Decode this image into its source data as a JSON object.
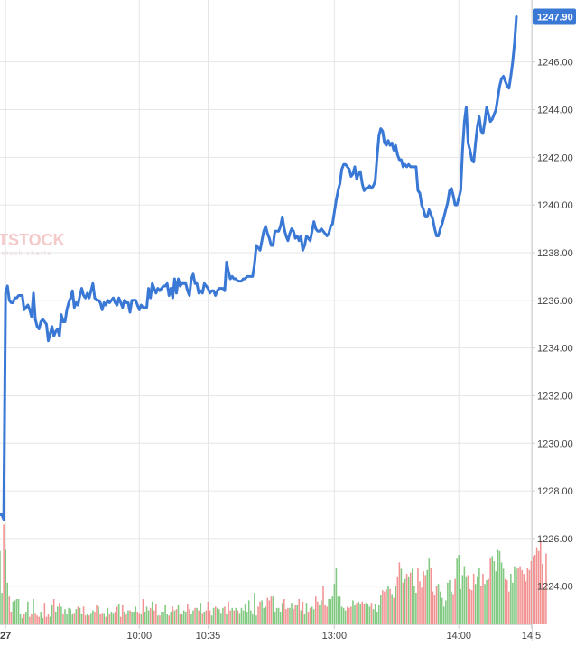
{
  "watermark": {
    "text": "TSTOCK",
    "tagline": "stock charts"
  },
  "colors": {
    "price_line": "#3a78d6",
    "volume_up": "#6cc06c",
    "volume_down": "#f07f7f",
    "price_tag": "#3a78d6",
    "grid": "#e6e6e6",
    "axis_text": "#444444"
  },
  "chart_data": {
    "type": "line",
    "ylim": [
      1222.4,
      1248.6
    ],
    "y_ticks": [
      "1224.00",
      "1226.00",
      "1228.00",
      "1230.00",
      "1232.00",
      "1234.00",
      "1236.00",
      "1238.00",
      "1240.00",
      "1242.00",
      "1244.00",
      "1246.00"
    ],
    "y_tick_values": [
      1224,
      1226,
      1228,
      1230,
      1232,
      1234,
      1236,
      1238,
      1240,
      1242,
      1244,
      1246
    ],
    "x_ticks": [
      "27",
      "10:00",
      "10:35",
      "13:00",
      "14:00",
      "14:5"
    ],
    "x_tick_index": [
      3,
      75,
      112,
      180,
      247,
      286
    ],
    "last_price_label": "1247.90",
    "series": [
      {
        "type": "line",
        "values": [
          1227.0,
          1227.0,
          1226.8,
          1236.3,
          1236.6,
          1236.0,
          1235.9,
          1235.9,
          1236.1,
          1236.1,
          1236.2,
          1236.2,
          1236.2,
          1235.6,
          1235.7,
          1235.8,
          1235.6,
          1235.3,
          1236.3,
          1235.2,
          1234.9,
          1234.8,
          1235.1,
          1235.2,
          1235.1,
          1235.0,
          1234.3,
          1234.6,
          1234.9,
          1234.5,
          1234.7,
          1234.8,
          1234.5,
          1235.4,
          1235.1,
          1235.1,
          1235.6,
          1235.9,
          1236.1,
          1236.4,
          1235.7,
          1235.9,
          1235.8,
          1236.2,
          1236.5,
          1236.2,
          1236.1,
          1236.3,
          1236.1,
          1236.4,
          1236.7,
          1236.1,
          1236.0,
          1236.0,
          1235.9,
          1235.6,
          1235.9,
          1235.8,
          1236.0,
          1235.9,
          1236.0,
          1236.1,
          1235.9,
          1235.8,
          1236.1,
          1235.9,
          1235.7,
          1236.0,
          1235.9,
          1235.9,
          1235.5,
          1236.0,
          1236.0,
          1236.0,
          1235.8,
          1235.6,
          1235.8,
          1235.7,
          1235.7,
          1235.7,
          1236.5,
          1236.1,
          1236.7,
          1236.5,
          1236.3,
          1236.5,
          1236.4,
          1236.5,
          1236.6,
          1236.6,
          1236.7,
          1236.2,
          1236.5,
          1236.1,
          1236.9,
          1236.3,
          1236.9,
          1236.6,
          1236.7,
          1236.7,
          1236.7,
          1236.4,
          1236.2,
          1236.9,
          1237.1,
          1236.7,
          1236.7,
          1236.3,
          1236.4,
          1236.3,
          1236.7,
          1236.6,
          1236.5,
          1236.3,
          1236.4,
          1236.4,
          1236.2,
          1236.4,
          1236.5,
          1236.5,
          1236.5,
          1236.4,
          1237.6,
          1237.2,
          1236.9,
          1237.0,
          1236.9,
          1236.9,
          1236.8,
          1236.8,
          1236.8,
          1236.9,
          1236.9,
          1237.0,
          1237.0,
          1237.0,
          1237.0,
          1237.5,
          1238.3,
          1238.2,
          1238.1,
          1238.5,
          1238.9,
          1239.1,
          1238.8,
          1238.6,
          1238.3,
          1238.3,
          1238.9,
          1238.9,
          1238.9,
          1239.1,
          1239.5,
          1239.0,
          1238.7,
          1238.5,
          1238.8,
          1239.0,
          1238.9,
          1238.6,
          1238.7,
          1238.5,
          1238.7,
          1238.1,
          1238.3,
          1238.7,
          1238.6,
          1238.5,
          1238.9,
          1239.3,
          1239.0,
          1238.9,
          1238.9,
          1239.0,
          1238.9,
          1238.8,
          1238.7,
          1238.8,
          1239.1,
          1239.2,
          1239.7,
          1240.2,
          1240.6,
          1240.9,
          1241.5,
          1241.7,
          1241.7,
          1241.6,
          1241.5,
          1241.2,
          1241.3,
          1241.6,
          1241.1,
          1241.3,
          1241.4,
          1240.9,
          1240.6,
          1240.7,
          1240.7,
          1240.8,
          1240.7,
          1240.8,
          1241.0,
          1242.0,
          1242.9,
          1243.2,
          1243.1,
          1242.6,
          1242.5,
          1242.7,
          1242.5,
          1242.6,
          1242.3,
          1242.5,
          1242.1,
          1241.9,
          1241.9,
          1241.6,
          1241.7,
          1241.6,
          1241.7,
          1241.6,
          1241.6,
          1241.6,
          1241.6,
          1240.6,
          1240.5,
          1240.0,
          1239.8,
          1239.5,
          1239.5,
          1239.8,
          1239.6,
          1239.4,
          1239.0,
          1238.7,
          1238.7,
          1239.0,
          1239.2,
          1239.5,
          1239.8,
          1240.1,
          1240.6,
          1240.7,
          1240.4,
          1240.0,
          1240.0,
          1240.3,
          1240.6,
          1242.3,
          1243.5,
          1244.1,
          1242.6,
          1242.3,
          1241.9,
          1241.8,
          1242.6,
          1243.3,
          1243.7,
          1243.1,
          1243.0,
          1243.5,
          1244.1,
          1243.8,
          1243.5,
          1243.6,
          1243.8,
          1244.0,
          1244.5,
          1245.0,
          1245.3,
          1245.4,
          1245.2,
          1245.0,
          1244.9,
          1245.4,
          1246.0,
          1246.8,
          1247.9
        ]
      },
      {
        "type": "bar",
        "name": "volume",
        "values": [
          58,
          25,
          79,
          59,
          33,
          22,
          10,
          18,
          19,
          20,
          20,
          8,
          5,
          8,
          10,
          18,
          6,
          8,
          20,
          9,
          7,
          6,
          10,
          5,
          17,
          6,
          8,
          6,
          15,
          20,
          10,
          14,
          17,
          14,
          8,
          12,
          8,
          13,
          12,
          8,
          9,
          12,
          14,
          13,
          8,
          14,
          7,
          8,
          7,
          9,
          11,
          10,
          15,
          14,
          8,
          9,
          9,
          6,
          13,
          8,
          10,
          9,
          10,
          14,
          16,
          6,
          15,
          10,
          8,
          11,
          11,
          10,
          10,
          14,
          10,
          9,
          8,
          20,
          10,
          14,
          11,
          13,
          18,
          11,
          16,
          7,
          7,
          10,
          10,
          15,
          8,
          7,
          10,
          14,
          11,
          12,
          15,
          8,
          8,
          11,
          10,
          16,
          12,
          8,
          11,
          13,
          13,
          11,
          17,
          9,
          10,
          11,
          18,
          11,
          7,
          13,
          14,
          13,
          12,
          9,
          13,
          14,
          8,
          18,
          11,
          13,
          11,
          13,
          11,
          9,
          13,
          11,
          16,
          10,
          19,
          11,
          8,
          25,
          7,
          14,
          18,
          19,
          13,
          14,
          21,
          19,
          22,
          22,
          10,
          13,
          13,
          10,
          17,
          20,
          12,
          13,
          13,
          17,
          12,
          15,
          15,
          20,
          11,
          18,
          8,
          17,
          10,
          13,
          14,
          12,
          22,
          18,
          15,
          19,
          30,
          15,
          14,
          20,
          20,
          22,
          32,
          45,
          22,
          22,
          14,
          13,
          11,
          14,
          13,
          14,
          19,
          15,
          17,
          18,
          16,
          18,
          16,
          17,
          16,
          14,
          17,
          12,
          16,
          10,
          15,
          23,
          27,
          26,
          28,
          30,
          28,
          24,
          21,
          30,
          38,
          49,
          44,
          33,
          36,
          40,
          38,
          41,
          44,
          30,
          25,
          45,
          34,
          29,
          42,
          39,
          43,
          52,
          45,
          26,
          23,
          30,
          32,
          26,
          21,
          14,
          19,
          33,
          35,
          26,
          24,
          36,
          52,
          55,
          28,
          39,
          46,
          38,
          39,
          28,
          27,
          40,
          32,
          38,
          45,
          30,
          40,
          32,
          35,
          36,
          52,
          54,
          50,
          42,
          59,
          58,
          49,
          44,
          36,
          35,
          26,
          40,
          33,
          46,
          44,
          45,
          46,
          43,
          40,
          34,
          45,
          43,
          50,
          54,
          55,
          61,
          58,
          66,
          48,
          28,
          56
        ]
      }
    ]
  }
}
